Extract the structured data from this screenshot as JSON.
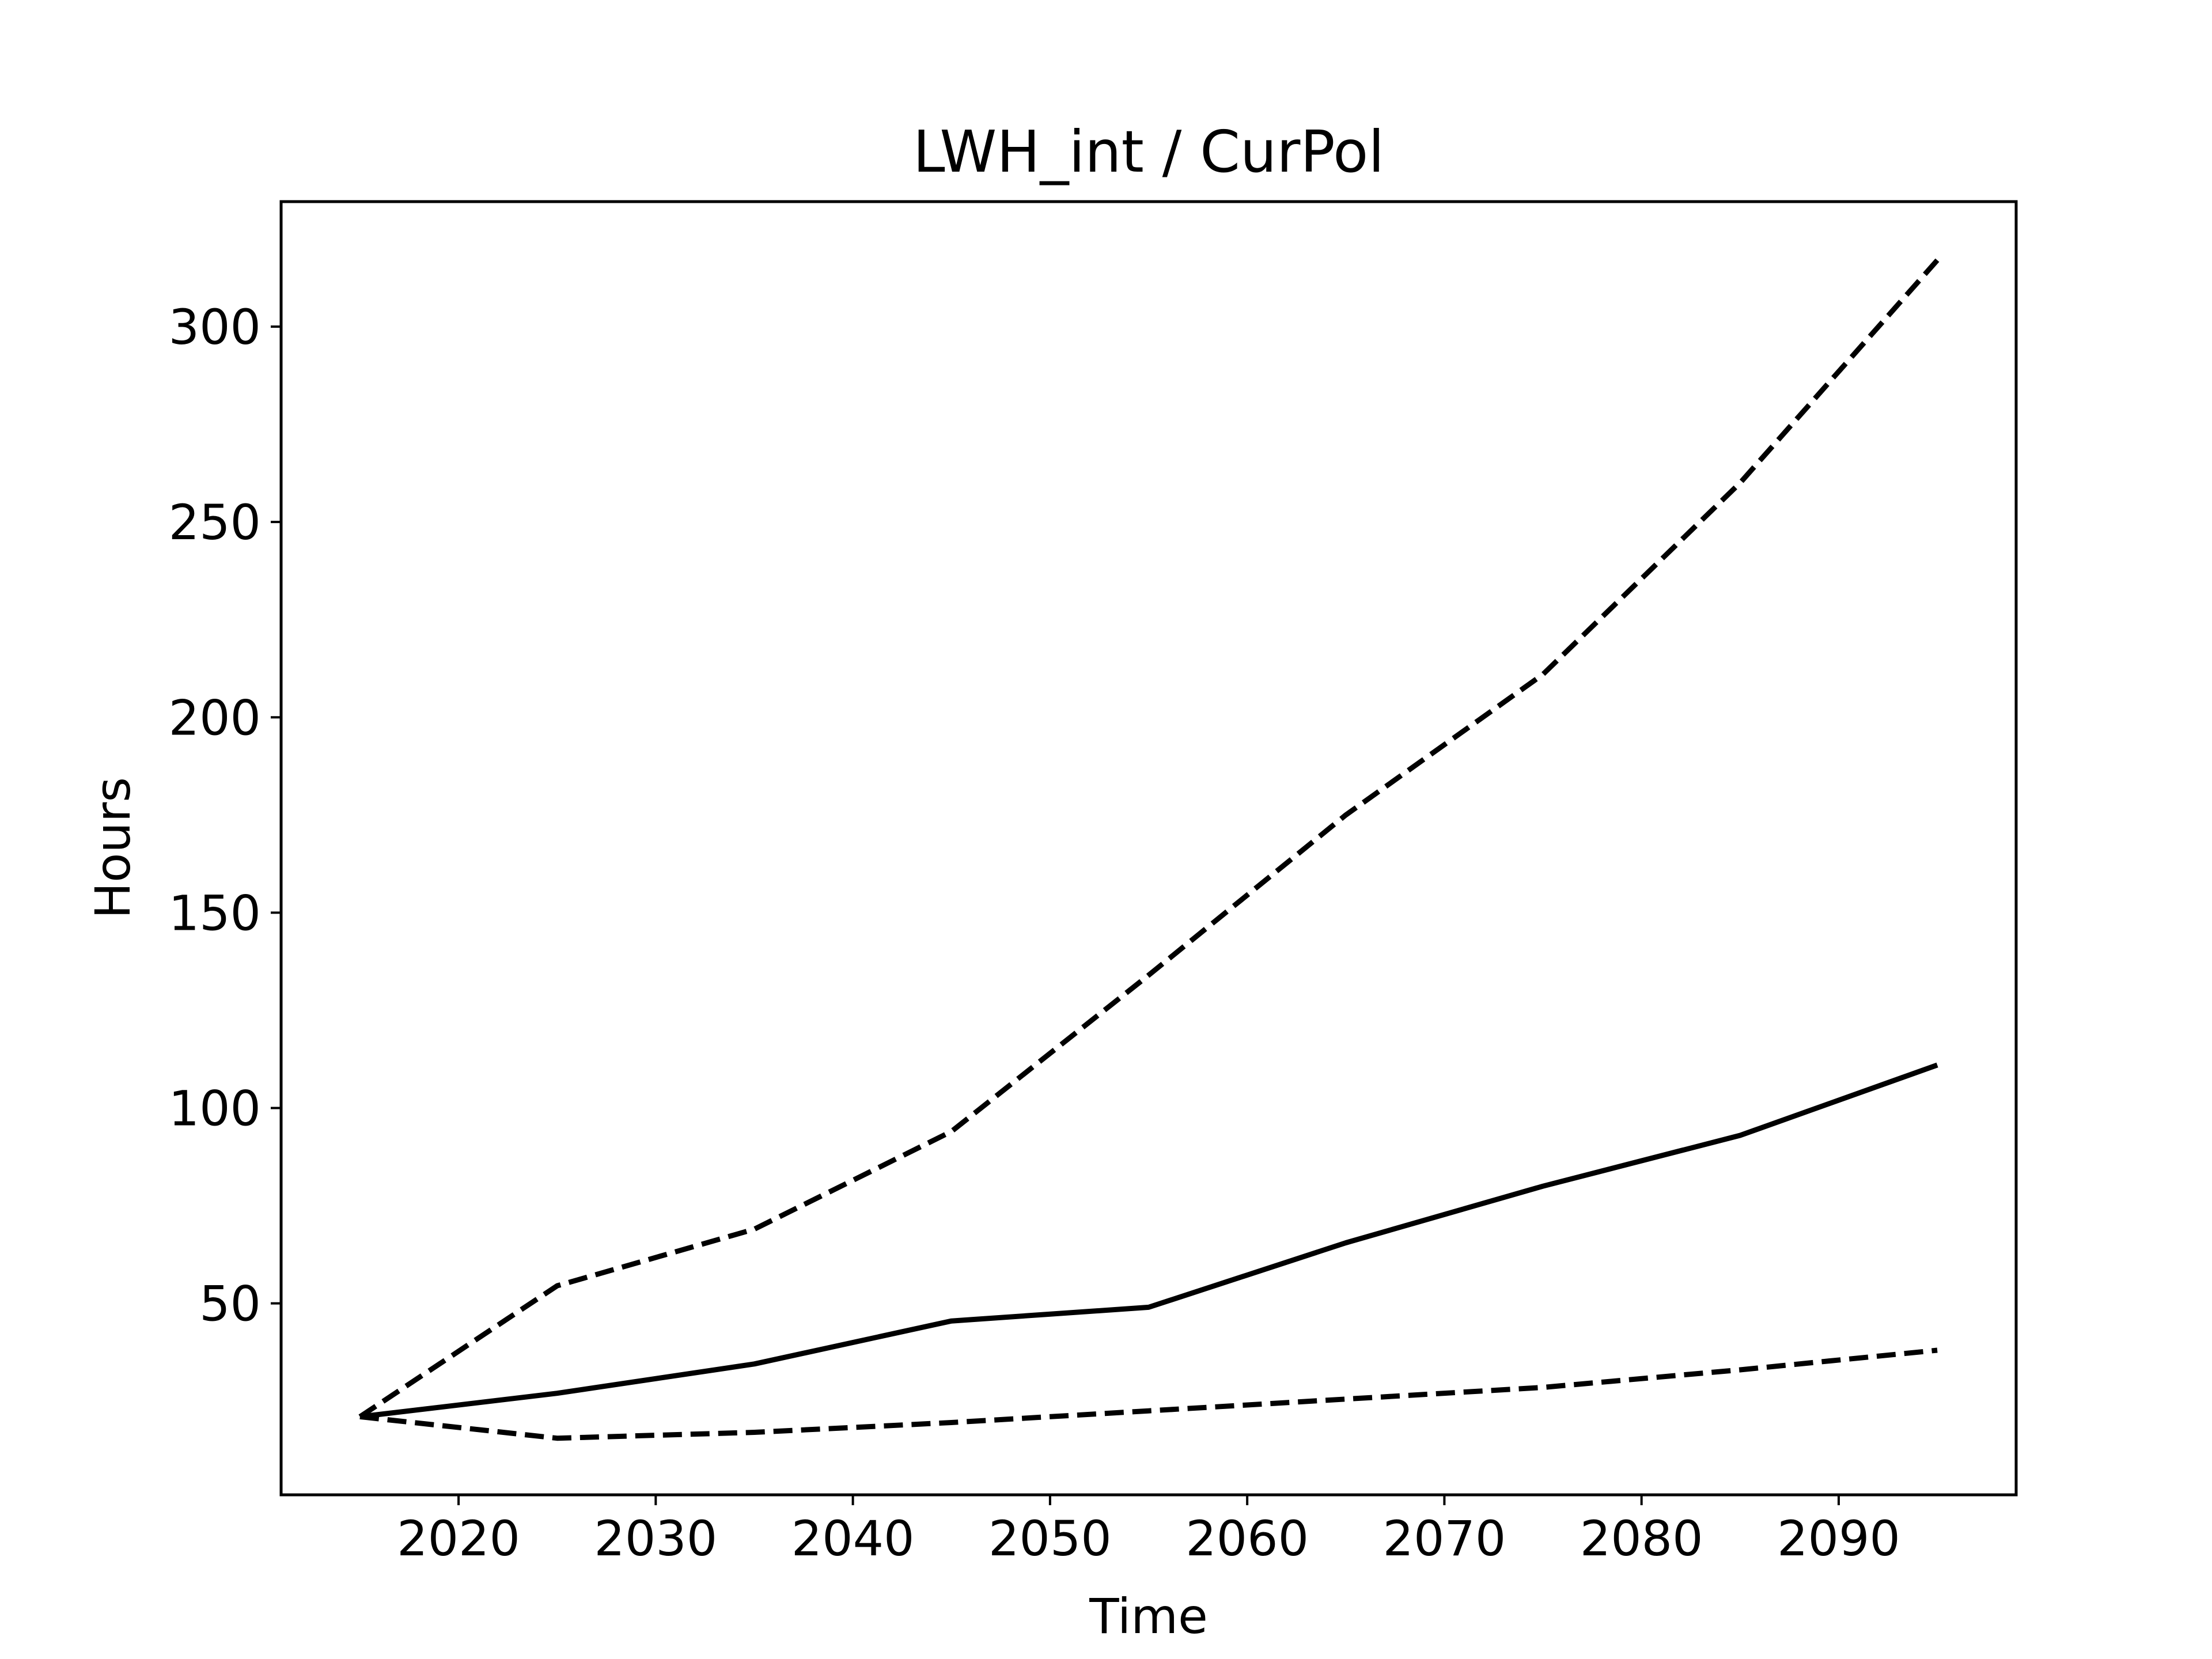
{
  "chart_data": {
    "type": "line",
    "title": "LWH_int / CurPol",
    "xlabel": "Time",
    "ylabel": "Hours",
    "x": [
      2015,
      2025,
      2035,
      2045,
      2055,
      2065,
      2075,
      2085,
      2095
    ],
    "series": [
      {
        "style": "solid",
        "values": [
          21,
          27,
          34.5,
          45.5,
          49,
          65.5,
          80,
          93,
          111
        ]
      },
      {
        "style": "dashed",
        "values": [
          21,
          54.5,
          69,
          94,
          134,
          175,
          211,
          260,
          317
        ]
      },
      {
        "style": "dashed",
        "values": [
          21,
          15.5,
          17,
          19.5,
          22.5,
          25.5,
          28.5,
          33,
          38
        ]
      }
    ],
    "xlim": [
      2011,
      2099
    ],
    "ylim": [
      1,
      332
    ],
    "xticks": [
      2020,
      2030,
      2040,
      2050,
      2060,
      2070,
      2080,
      2090
    ],
    "yticks": [
      50,
      100,
      150,
      200,
      250,
      300
    ],
    "grid": false,
    "line_color": "#000000"
  }
}
